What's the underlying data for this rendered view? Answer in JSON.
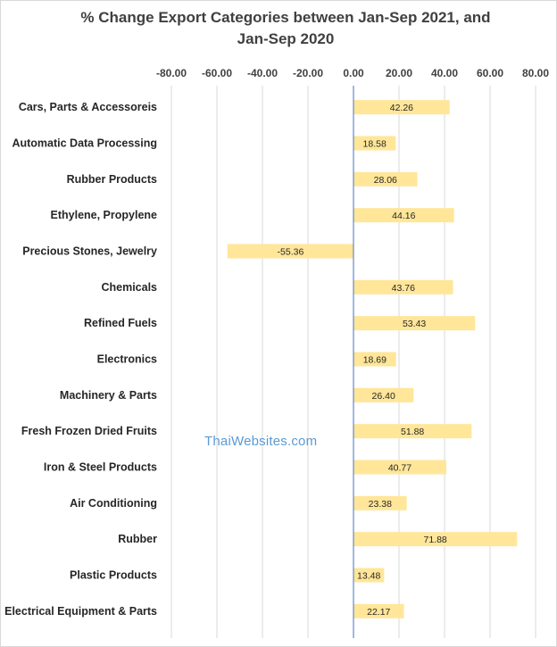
{
  "chart_data": {
    "type": "bar",
    "orientation": "horizontal",
    "title": "% Change Export Categories between Jan-Sep 2021, and Jan-Sep 2020",
    "title_lines": [
      "% Change Export Categories between Jan-Sep 2021, and",
      "Jan-Sep 2020"
    ],
    "categories": [
      "Cars, Parts & Accessoreis",
      "Automatic Data Processing",
      "Rubber Products",
      "Ethylene, Propylene",
      "Precious Stones, Jewelry",
      "Chemicals",
      "Refined Fuels",
      "Electronics",
      "Machinery & Parts",
      "Fresh Frozen Dried Fruits",
      "Iron & Steel Products",
      "Air Conditioning",
      "Rubber",
      "Plastic Products",
      "Electrical Equipment & Parts"
    ],
    "values": [
      42.26,
      18.58,
      28.06,
      44.16,
      -55.36,
      43.76,
      53.43,
      18.69,
      26.4,
      51.88,
      40.77,
      23.38,
      71.88,
      13.48,
      22.17
    ],
    "value_labels": [
      "42.26",
      "18.58",
      "28.06",
      "44.16",
      "-55.36",
      "43.76",
      "53.43",
      "18.69",
      "26.40",
      "51.88",
      "40.77",
      "23.38",
      "71.88",
      "13.48",
      "22.17"
    ],
    "xlim": [
      -80,
      80
    ],
    "x_ticks": [
      "-80.00",
      "-60.00",
      "-40.00",
      "-20.00",
      "0.00",
      "20.00",
      "40.00",
      "60.00",
      "80.00"
    ],
    "x_axis_position": "top",
    "grid": true,
    "legend": "none",
    "colors": {
      "bar": "#ffe699",
      "grid": "#d9d9d9",
      "zero_line": "#4472c4",
      "text": "#404040"
    }
  },
  "watermark": "ThaiWebsites.com"
}
